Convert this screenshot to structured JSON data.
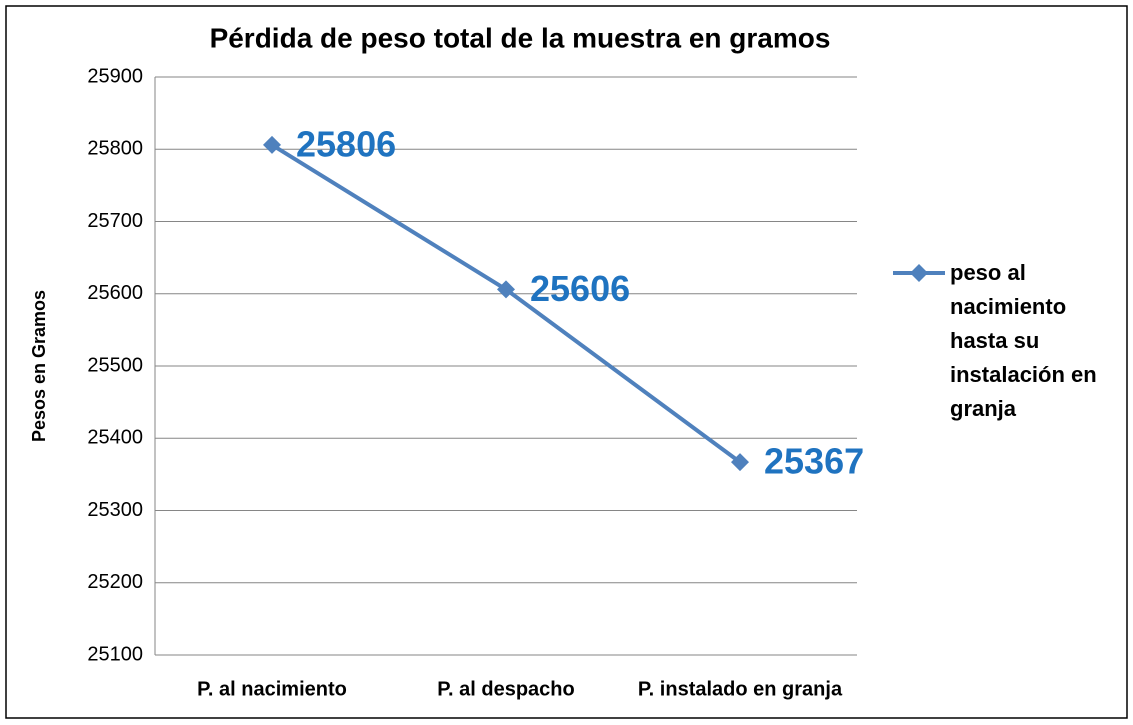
{
  "chart_data": {
    "type": "line",
    "title": "Pérdida de peso total de la muestra en gramos",
    "y_label": "Pesos en Gramos",
    "categories": [
      "P. al nacimiento",
      "P. al despacho",
      "P. instalado en granja"
    ],
    "series": [
      {
        "name": "peso al nacimiento hasta su instalación en granja",
        "color": "#4f81bd",
        "values": [
          25806,
          25606,
          25367
        ]
      }
    ],
    "label_color": "#1f73c0",
    "ylim": [
      25100,
      25900
    ],
    "yticks": [
      25100,
      25200,
      25300,
      25400,
      25500,
      25600,
      25700,
      25800,
      25900
    ],
    "grid": true,
    "legend": "right"
  }
}
